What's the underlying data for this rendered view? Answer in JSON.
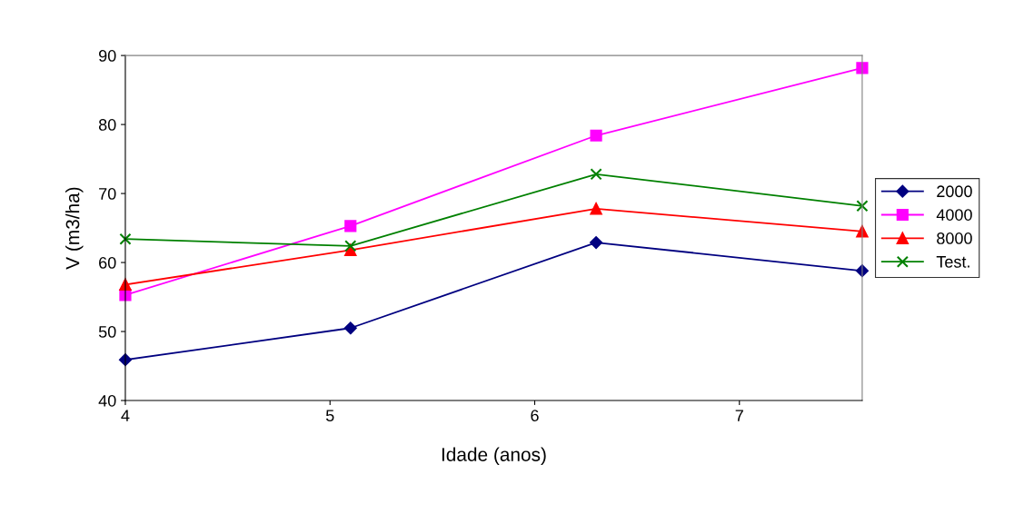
{
  "chart_data": {
    "type": "line",
    "xlabel": "Idade (anos)",
    "ylabel": "V (m3/ha)",
    "xlim": [
      4,
      7.6
    ],
    "xticks": [
      4,
      5,
      6,
      7
    ],
    "ylim": [
      40,
      90
    ],
    "yticks": [
      40,
      50,
      60,
      70,
      80,
      90
    ],
    "grid": false,
    "legend": "right",
    "line_style": "solid",
    "series": [
      {
        "name": "2000",
        "color": "#000080",
        "marker": "diamond",
        "x": [
          4,
          5.1,
          6.3,
          7.6
        ],
        "values": [
          45.9,
          50.5,
          62.9,
          58.8
        ]
      },
      {
        "name": "4000",
        "color": "#ff00ff",
        "marker": "square",
        "x": [
          4,
          5.1,
          6.3,
          7.6
        ],
        "values": [
          55.3,
          65.3,
          78.4,
          88.2
        ]
      },
      {
        "name": "8000",
        "color": "#ff0000",
        "marker": "triangle",
        "x": [
          4,
          5.1,
          6.3,
          7.6
        ],
        "values": [
          56.8,
          61.8,
          67.8,
          64.5
        ]
      },
      {
        "name": "Test.",
        "color": "#008000",
        "marker": "cross",
        "x": [
          4,
          5.1,
          6.3,
          7.6
        ],
        "values": [
          63.4,
          62.4,
          72.8,
          68.2
        ]
      }
    ]
  }
}
